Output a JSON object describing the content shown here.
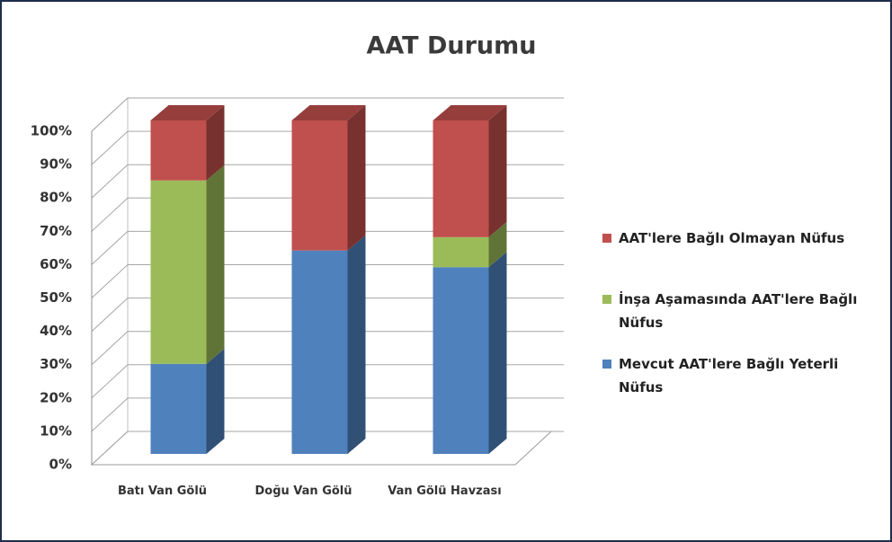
{
  "chart_data": {
    "type": "bar3d_stacked",
    "title": "AAT Durumu",
    "categories": [
      "Batı Van Gölü",
      "Doğu Van Gölü",
      "Van Gölü Havzası"
    ],
    "series": [
      {
        "name": "Mevcut AAT'lere Bağlı Yeterli Nüfus",
        "color": "#4f81bd",
        "values": [
          27,
          61,
          56
        ]
      },
      {
        "name": "İnşa Aşamasında AAT'lere Bağlı Nüfus",
        "color": "#9bbb59",
        "values": [
          55,
          0,
          9
        ]
      },
      {
        "name": "AAT'lere Bağlı Olmayan Nüfus",
        "color": "#c0504d",
        "values": [
          18,
          39,
          35
        ]
      }
    ],
    "ylim": [
      0,
      100
    ],
    "yticks": [
      {
        "value": 0,
        "label": "0%"
      },
      {
        "value": 10,
        "label": "10%"
      },
      {
        "value": 20,
        "label": "20%"
      },
      {
        "value": 30,
        "label": "30%"
      },
      {
        "value": 40,
        "label": "40%"
      },
      {
        "value": 50,
        "label": "50%"
      },
      {
        "value": 60,
        "label": "60%"
      },
      {
        "value": 70,
        "label": "70%"
      },
      {
        "value": 80,
        "label": "80%"
      },
      {
        "value": 90,
        "label": "90%"
      },
      {
        "value": 100,
        "label": "100%"
      }
    ],
    "grid": true,
    "legend": "right"
  }
}
